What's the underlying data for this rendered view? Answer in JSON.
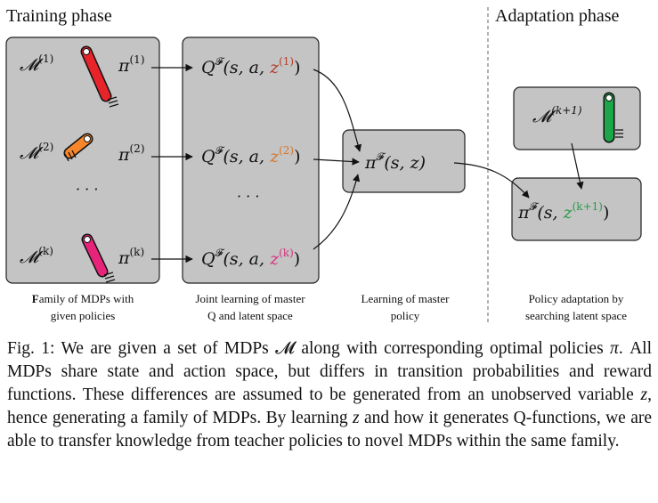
{
  "phases": {
    "training": "Training phase",
    "adaptation": "Adaptation phase"
  },
  "mdps": [
    {
      "label": "𝓜",
      "sup": "(1)",
      "policy": "π",
      "policy_sup": "(1)",
      "color": "#e8242b"
    },
    {
      "label": "𝓜",
      "sup": "(2)",
      "policy": "π",
      "policy_sup": "(2)",
      "color": "#f7862a"
    },
    {
      "label": "𝓜",
      "sup": "(k)",
      "policy": "π",
      "policy_sup": "(k)",
      "color": "#e8247a"
    }
  ],
  "new_mdp": {
    "label": "𝓜",
    "sup": "(k+1)",
    "color": "#1ca64a"
  },
  "ellipsis": "· · ·",
  "q_functions": [
    {
      "prefix": "Q",
      "sup": "𝓕",
      "args": "(s, a, ",
      "latent": "z",
      "latent_sup": "(1)",
      "close": ")",
      "color": "#b3402a"
    },
    {
      "prefix": "Q",
      "sup": "𝓕",
      "args": "(s, a, ",
      "latent": "z",
      "latent_sup": "(2)",
      "close": ")",
      "color": "#d4782f"
    },
    {
      "prefix": "Q",
      "sup": "𝓕",
      "args": "(s, a, ",
      "latent": "z",
      "latent_sup": "(k)",
      "close": ")",
      "color": "#d63580"
    }
  ],
  "master_policy": {
    "prefix": "π",
    "sup": "𝓕",
    "args": "(s, z)"
  },
  "adapted_policy": {
    "prefix": "π",
    "sup": "𝓕",
    "args": "(s, ",
    "latent": "z",
    "latent_sup": "(k+1)",
    "close": ")",
    "color": "#2e9a4a"
  },
  "column_labels": [
    {
      "line1_bold": "F",
      "line1": "amily of MDPs with",
      "line2": "given policies"
    },
    {
      "line1": "Joint learning of master",
      "line2": "Q and latent space"
    },
    {
      "line1": "Learning of master",
      "line2": "policy"
    },
    {
      "line1": "Policy adaptation by",
      "line2": "searching latent space"
    }
  ],
  "caption": {
    "prefix": "Fig. 1: We are given a set of MDPs ",
    "set_symbol": "𝓜",
    "middle1": " along with corresponding optimal policies ",
    "policy_symbol": "π",
    "middle2": ". All MDPs share state and action space, but differs in transition probabilities and reward functions. These differences are assumed to be generated from an unobserved variable ",
    "z1": "z",
    "middle3": ", hence generating a family of MDPs. By learning ",
    "z2": "z",
    "suffix": " and how it generates Q-functions, we are able to transfer knowledge from teacher policies to novel MDPs within the same family."
  }
}
